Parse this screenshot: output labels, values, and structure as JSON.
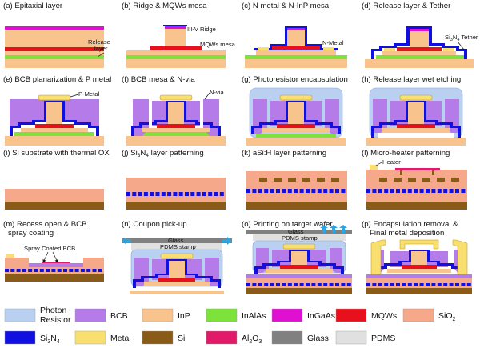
{
  "colors": {
    "photoresist": "#b9d0f1",
    "bcb": "#b57be8",
    "inp": "#f8c38d",
    "inalas": "#7de23a",
    "ingaas": "#e010d3",
    "mqw": "#e8101c",
    "sio2": "#f6a88a",
    "si3n4": "#1010e0",
    "metal": "#f8df70",
    "si": "#8a5a18",
    "al2o3": "#e21a6a",
    "glass": "#808080",
    "pdms": "#e0e0e0",
    "arrow": "#2aa6e6"
  },
  "panels": [
    {
      "caption": "(a) Epitaxial layer"
    },
    {
      "caption": "(b) Ridge & MQWs mesa"
    },
    {
      "caption": "(c) N metal & N-InP mesa"
    },
    {
      "caption": "(d) Release layer & Tether"
    },
    {
      "caption": "(e) BCB planarization & P metal"
    },
    {
      "caption": "(f) BCB mesa & N-via"
    },
    {
      "caption": "(g) Photoresistor encapsulation"
    },
    {
      "caption": "(h) Release layer wet etching"
    },
    {
      "caption": "(i) Si substrate with thermal OX"
    },
    {
      "caption_pre": "(j) Si",
      "caption_sub": "3",
      "caption_mid": "N",
      "caption_sub2": "4",
      "caption_post": " layer patterning"
    },
    {
      "caption": "(k) aSi:H layer patterning"
    },
    {
      "caption": "(l) Micro-heater patterning"
    },
    {
      "caption": "(m) Recess open & BCB",
      "caption2": "spray coating"
    },
    {
      "caption": "(n) Coupon pick-up"
    },
    {
      "caption": "(o) Printing on target wafer"
    },
    {
      "caption": "(p) Encapsulation removal &",
      "caption2": "Final metal deposition"
    }
  ],
  "annotations": {
    "release_layer_1": "Release",
    "release_layer_2": "layer",
    "ridge": "III-V Ridge",
    "mqws_mesa": "MQWs mesa",
    "n_metal": "N-Metal",
    "tether_pre": "Si",
    "tether_sub1": "3",
    "tether_mid": "N",
    "tether_sub2": "4",
    "tether_post": " Tether",
    "p_metal": "P-Metal",
    "n_via": "N-via",
    "heater": "Heater",
    "spray_bcb": "Spray Coated BCB",
    "glass_n": "Glass",
    "pdms_n": "PDMS stamp",
    "glass_o": "Glass",
    "pdms_o": "PDMS stamp"
  },
  "legend": [
    {
      "label": "Photon",
      "label2": "Resistor",
      "color": "#b9d0f1"
    },
    {
      "label": "BCB",
      "color": "#b57be8"
    },
    {
      "label": "InP",
      "color": "#f8c38d"
    },
    {
      "label": "InAlAs",
      "color": "#7de23a"
    },
    {
      "label": "InGaAs",
      "color": "#e010d3"
    },
    {
      "label": "MQWs",
      "color": "#e8101c"
    },
    {
      "label": "SiO",
      "sub": "2",
      "color": "#f6a88a"
    },
    {
      "label": "Si",
      "sub": "3",
      "label_mid": "N",
      "sub2": "4",
      "color": "#1010e0"
    },
    {
      "label": "Metal",
      "color": "#f8df70"
    },
    {
      "label": "Si",
      "color": "#8a5a18"
    },
    {
      "label": "Al",
      "sub": "2",
      "label_mid": "O",
      "sub2": "3",
      "color": "#e21a6a"
    },
    {
      "label": "Glass",
      "color": "#808080"
    },
    {
      "label": "PDMS",
      "color": "#e0e0e0"
    }
  ]
}
